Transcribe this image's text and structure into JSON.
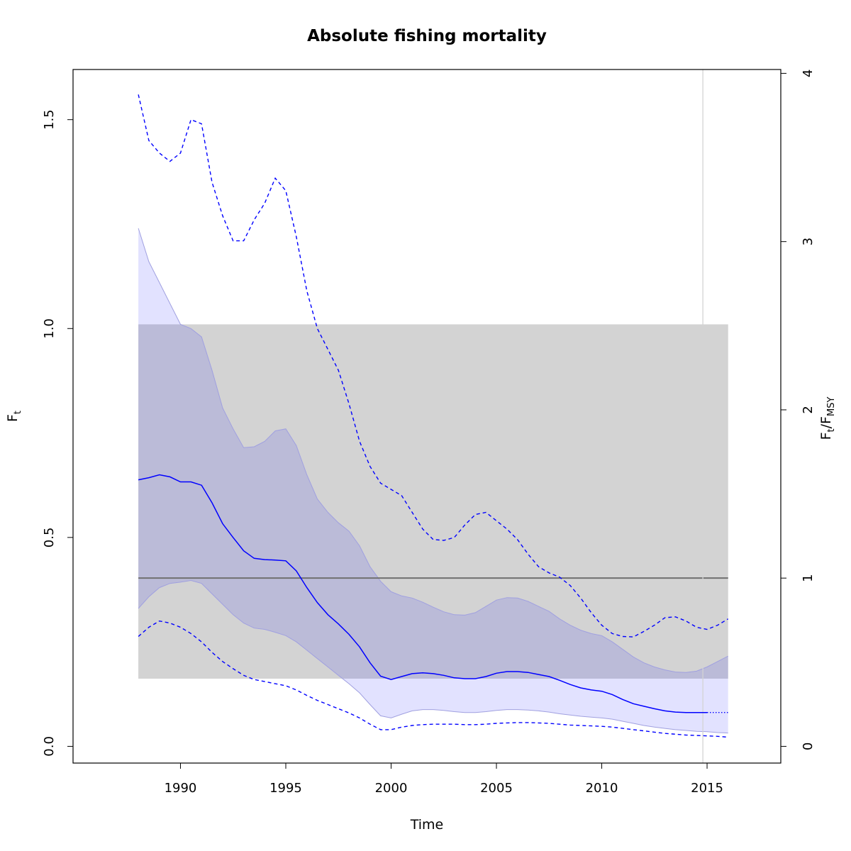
{
  "chart_data": {
    "type": "line",
    "title": "Absolute fishing mortality",
    "xlabel": "Time",
    "ylabel": {
      "main": "F",
      "sub": "t"
    },
    "ylabel_right": {
      "num_main": "F",
      "num_sub": "t",
      "den_main": "F",
      "den_sub": "MSY"
    },
    "xlim": [
      1984.9,
      2018.5
    ],
    "ylim": [
      -0.04,
      1.62
    ],
    "xticks": [
      "1990",
      "1995",
      "2000",
      "2005",
      "2010",
      "2015"
    ],
    "yticks": [
      "0.0",
      "0.5",
      "1.0",
      "1.5"
    ],
    "yticks_right": [
      "0",
      "1",
      "2",
      "3",
      "4"
    ],
    "fmsy": 0.4027,
    "grid": false,
    "legend": "none",
    "colors": {
      "estimate": "#0000ff",
      "ci_fill": "#e2e2ff",
      "ci_overlap": "#bbbbdb",
      "ci_edge": "#a0a0e0",
      "fmsy_band": "#d3d3d3",
      "fmsy_line": "#707070",
      "vline": "#d3d3d3"
    },
    "fmsy_band": {
      "x": [
        1988,
        2016
      ],
      "y": [
        0.162,
        1.01
      ]
    },
    "vline_x": 2014.8,
    "series": [
      {
        "name": "",
        "role": "estimate",
        "style": "solid",
        "x": [
          1988,
          1988.5,
          1989,
          1989.5,
          1990,
          1990.5,
          1991,
          1991.5,
          1992,
          1992.5,
          1993,
          1993.5,
          1994,
          1994.5,
          1995,
          1995.5,
          1996,
          1996.5,
          1997,
          1997.5,
          1998,
          1998.5,
          1999,
          1999.5,
          2000,
          2000.5,
          2001,
          2001.5,
          2002,
          2002.5,
          2003,
          2003.5,
          2004,
          2004.5,
          2005,
          2005.5,
          2006,
          2006.5,
          2007,
          2007.5,
          2008,
          2008.5,
          2009,
          2009.5,
          2010,
          2010.5,
          2011,
          2011.5,
          2012,
          2012.5,
          2013,
          2013.5,
          2014,
          2014.5,
          2015
        ],
        "values": [
          0.638,
          0.643,
          0.65,
          0.645,
          0.633,
          0.633,
          0.625,
          0.583,
          0.533,
          0.5,
          0.468,
          0.45,
          0.447,
          0.446,
          0.444,
          0.42,
          0.38,
          0.344,
          0.315,
          0.293,
          0.268,
          0.238,
          0.2,
          0.168,
          0.16,
          0.167,
          0.174,
          0.176,
          0.174,
          0.17,
          0.164,
          0.162,
          0.162,
          0.167,
          0.175,
          0.179,
          0.179,
          0.177,
          0.172,
          0.167,
          0.158,
          0.148,
          0.14,
          0.135,
          0.132,
          0.124,
          0.112,
          0.102,
          0.096,
          0.09,
          0.085,
          0.082,
          0.081,
          0.081,
          0.081
        ]
      },
      {
        "name": "",
        "role": "estimate-projection",
        "style": "dotted",
        "x": [
          2015,
          2015.5,
          2016
        ],
        "values": [
          0.081,
          0.081,
          0.081
        ]
      },
      {
        "name": "",
        "role": "ci-upper",
        "x": [
          1988,
          1988.5,
          1989,
          1989.5,
          1990,
          1990.5,
          1991,
          1991.5,
          1992,
          1992.5,
          1993,
          1993.5,
          1994,
          1994.5,
          1995,
          1995.5,
          1996,
          1996.5,
          1997,
          1997.5,
          1998,
          1998.5,
          1999,
          1999.5,
          2000,
          2000.5,
          2001,
          2001.5,
          2002,
          2002.5,
          2003,
          2003.5,
          2004,
          2004.5,
          2005,
          2005.5,
          2006,
          2006.5,
          2007,
          2007.5,
          2008,
          2008.5,
          2009,
          2009.5,
          2010,
          2010.5,
          2011,
          2011.5,
          2012,
          2012.5,
          2013,
          2013.5,
          2014,
          2014.5,
          2015,
          2015.5,
          2016
        ],
        "values": [
          1.24,
          1.16,
          1.11,
          1.06,
          1.01,
          1.0,
          0.98,
          0.9,
          0.81,
          0.76,
          0.715,
          0.717,
          0.73,
          0.755,
          0.76,
          0.72,
          0.65,
          0.592,
          0.56,
          0.535,
          0.515,
          0.48,
          0.43,
          0.395,
          0.37,
          0.36,
          0.355,
          0.345,
          0.333,
          0.322,
          0.315,
          0.314,
          0.32,
          0.335,
          0.35,
          0.356,
          0.355,
          0.347,
          0.335,
          0.323,
          0.305,
          0.29,
          0.278,
          0.27,
          0.265,
          0.25,
          0.232,
          0.214,
          0.2,
          0.19,
          0.183,
          0.178,
          0.177,
          0.18,
          0.19,
          0.203,
          0.216
        ]
      },
      {
        "name": "",
        "role": "ci-lower",
        "x": [
          1988,
          1988.5,
          1989,
          1989.5,
          1990,
          1990.5,
          1991,
          1991.5,
          1992,
          1992.5,
          1993,
          1993.5,
          1994,
          1994.5,
          1995,
          1995.5,
          1996,
          1996.5,
          1997,
          1997.5,
          1998,
          1998.5,
          1999,
          1999.5,
          2000,
          2000.5,
          2001,
          2001.5,
          2002,
          2002.5,
          2003,
          2003.5,
          2004,
          2004.5,
          2005,
          2005.5,
          2006,
          2006.5,
          2007,
          2007.5,
          2008,
          2008.5,
          2009,
          2009.5,
          2010,
          2010.5,
          2011,
          2011.5,
          2012,
          2012.5,
          2013,
          2013.5,
          2014,
          2014.5,
          2015,
          2015.5,
          2016
        ],
        "values": [
          0.33,
          0.358,
          0.38,
          0.39,
          0.393,
          0.397,
          0.39,
          0.365,
          0.34,
          0.315,
          0.295,
          0.283,
          0.28,
          0.273,
          0.265,
          0.25,
          0.23,
          0.21,
          0.19,
          0.17,
          0.15,
          0.128,
          0.1,
          0.073,
          0.068,
          0.077,
          0.085,
          0.088,
          0.088,
          0.086,
          0.083,
          0.081,
          0.081,
          0.083,
          0.086,
          0.088,
          0.088,
          0.087,
          0.085,
          0.082,
          0.078,
          0.075,
          0.072,
          0.07,
          0.068,
          0.065,
          0.06,
          0.055,
          0.05,
          0.046,
          0.043,
          0.04,
          0.038,
          0.036,
          0.035,
          0.033,
          0.032
        ]
      },
      {
        "name": "",
        "role": "outer-upper",
        "style": "dashed",
        "x": [
          1988,
          1988.5,
          1989,
          1989.5,
          1990,
          1990.5,
          1991,
          1991.5,
          1992,
          1992.5,
          1993,
          1993.5,
          1994,
          1994.5,
          1995,
          1995.5,
          1996,
          1996.5,
          1997,
          1997.5,
          1998,
          1998.5,
          1999,
          1999.5,
          2000,
          2000.5,
          2001,
          2001.5,
          2002,
          2002.5,
          2003,
          2003.5,
          2004,
          2004.5,
          2005,
          2005.5,
          2006,
          2006.5,
          2007,
          2007.5,
          2008,
          2008.5,
          2009,
          2009.5,
          2010,
          2010.5,
          2011,
          2011.5,
          2012,
          2012.5,
          2013,
          2013.5,
          2014,
          2014.5,
          2015,
          2015.5,
          2016
        ],
        "values": [
          1.56,
          1.45,
          1.42,
          1.4,
          1.42,
          1.5,
          1.49,
          1.35,
          1.27,
          1.21,
          1.21,
          1.26,
          1.3,
          1.36,
          1.33,
          1.22,
          1.09,
          1.0,
          0.95,
          0.9,
          0.82,
          0.73,
          0.67,
          0.63,
          0.615,
          0.6,
          0.56,
          0.52,
          0.495,
          0.493,
          0.5,
          0.53,
          0.555,
          0.56,
          0.54,
          0.52,
          0.495,
          0.46,
          0.43,
          0.415,
          0.405,
          0.385,
          0.355,
          0.32,
          0.29,
          0.27,
          0.263,
          0.262,
          0.275,
          0.29,
          0.308,
          0.31,
          0.3,
          0.285,
          0.28,
          0.29,
          0.305
        ]
      },
      {
        "name": "",
        "role": "outer-lower",
        "style": "dashed",
        "x": [
          1988,
          1988.5,
          1989,
          1989.5,
          1990,
          1990.5,
          1991,
          1991.5,
          1992,
          1992.5,
          1993,
          1993.5,
          1994,
          1994.5,
          1995,
          1995.5,
          1996,
          1996.5,
          1997,
          1997.5,
          1998,
          1998.5,
          1999,
          1999.5,
          2000,
          2000.5,
          2001,
          2001.5,
          2002,
          2002.5,
          2003,
          2003.5,
          2004,
          2004.5,
          2005,
          2005.5,
          2006,
          2006.5,
          2007,
          2007.5,
          2008,
          2008.5,
          2009,
          2009.5,
          2010,
          2010.5,
          2011,
          2011.5,
          2012,
          2012.5,
          2013,
          2013.5,
          2014,
          2014.5,
          2015,
          2015.5,
          2016
        ],
        "values": [
          0.263,
          0.285,
          0.3,
          0.295,
          0.285,
          0.27,
          0.25,
          0.225,
          0.203,
          0.186,
          0.17,
          0.16,
          0.155,
          0.15,
          0.145,
          0.135,
          0.122,
          0.11,
          0.1,
          0.09,
          0.08,
          0.068,
          0.053,
          0.04,
          0.04,
          0.046,
          0.05,
          0.052,
          0.053,
          0.053,
          0.053,
          0.052,
          0.052,
          0.053,
          0.055,
          0.056,
          0.057,
          0.057,
          0.056,
          0.055,
          0.053,
          0.051,
          0.05,
          0.049,
          0.048,
          0.046,
          0.043,
          0.04,
          0.037,
          0.034,
          0.031,
          0.029,
          0.027,
          0.026,
          0.025,
          0.024,
          0.022
        ]
      }
    ]
  }
}
